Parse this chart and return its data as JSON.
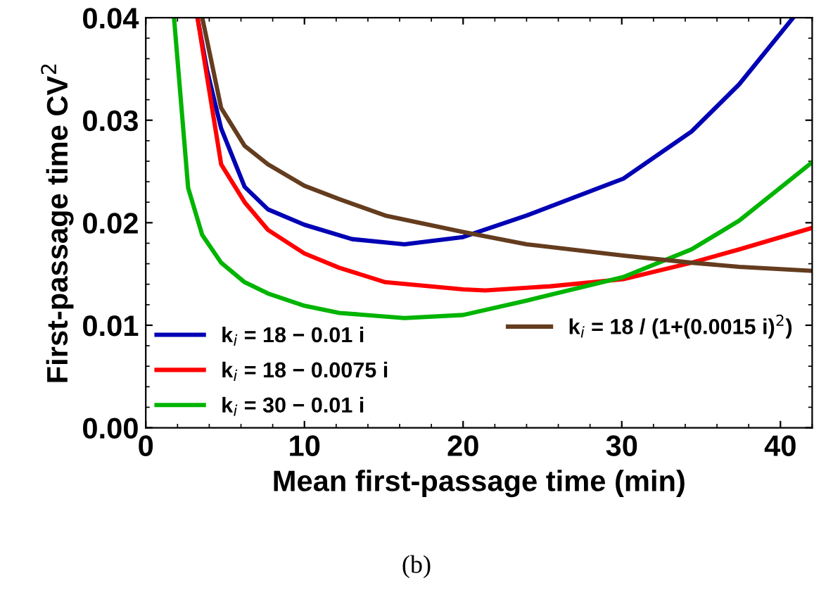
{
  "chart_data": {
    "type": "line",
    "xlabel": "Mean first-passage time (min)",
    "ylabel": "First-passage time CV$^{2}$",
    "annotations": [
      "(b)"
    ],
    "xlim": [
      0,
      42
    ],
    "ylim": [
      0,
      0.04
    ],
    "xticks": [
      0,
      10,
      20,
      30,
      40
    ],
    "yticks": [
      {
        "value": 0,
        "label": "0.00"
      },
      {
        "value": 0.01,
        "label": "0.01"
      },
      {
        "value": 0.02,
        "label": "0.02"
      },
      {
        "value": 0.03,
        "label": "0.03"
      },
      {
        "value": 0.04,
        "label": "0.04"
      }
    ],
    "grid": false,
    "legend": "bottom left",
    "marker": "none",
    "line_style": "solid",
    "series": [
      {
        "name": "k$_{i}$ = 18 − 0.01 i",
        "color": "#0000b4",
        "x": [
          3.26,
          3.86,
          4.75,
          6.23,
          7.7,
          10,
          13,
          16.3,
          20,
          24,
          30.1,
          34.4,
          37.4,
          40.8
        ],
        "values": [
          0.04,
          0.0349,
          0.0292,
          0.0235,
          0.0213,
          0.0198,
          0.0184,
          0.0179,
          0.0186,
          0.0207,
          0.0243,
          0.0289,
          0.0335,
          0.04
        ]
      },
      {
        "name": "k$_{i}$ = 18 − 0.0075 i",
        "color": "#ff0000",
        "x": [
          3.26,
          4.75,
          6.23,
          7.7,
          10,
          12.2,
          15.1,
          20,
          21.4,
          25.5,
          30.1,
          34.4,
          37.4,
          42
        ],
        "values": [
          0.04,
          0.0257,
          0.022,
          0.0193,
          0.017,
          0.0156,
          0.0142,
          0.0135,
          0.0134,
          0.0138,
          0.0145,
          0.0161,
          0.0174,
          0.0195
        ]
      },
      {
        "name": "k$_{i}$ = 30 − 0.01 i",
        "color": "#00b400",
        "x": [
          1.78,
          2.67,
          3.56,
          4.75,
          6.23,
          7.7,
          10,
          12.2,
          16.3,
          20,
          24,
          30.1,
          34.4,
          37.4,
          42
        ],
        "values": [
          0.04,
          0.0234,
          0.0188,
          0.0161,
          0.0142,
          0.0131,
          0.0119,
          0.0112,
          0.0107,
          0.011,
          0.0124,
          0.0147,
          0.0174,
          0.0202,
          0.0259
        ]
      },
      {
        "name": "k$_{i}$ = 18 / (1+(0.0015 i)$^{2}$)",
        "color": "#643c1e",
        "x": [
          3.56,
          4.75,
          6.23,
          7.7,
          10,
          12.2,
          15.1,
          20,
          24,
          30.1,
          34.4,
          37.4,
          42
        ],
        "values": [
          0.04,
          0.0312,
          0.0275,
          0.0257,
          0.0236,
          0.0223,
          0.0207,
          0.0191,
          0.0179,
          0.0168,
          0.0161,
          0.0157,
          0.0153
        ]
      }
    ]
  }
}
